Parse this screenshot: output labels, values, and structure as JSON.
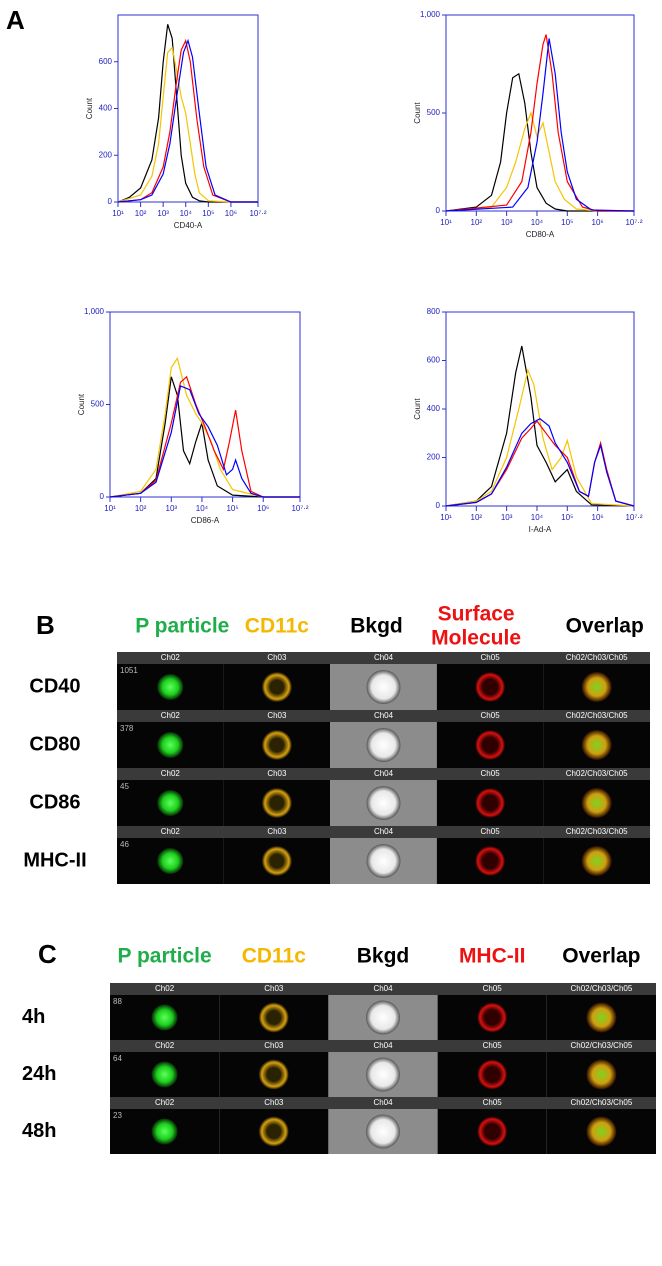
{
  "panel_a": {
    "label": "A",
    "plots": [
      {
        "type": "line",
        "xlabel": "CD40-A",
        "ylabel": "Count",
        "xlim": [
          1,
          7.2
        ],
        "xticks": [
          {
            "value": 1,
            "label": "10¹"
          },
          {
            "value": 2,
            "label": "10²"
          },
          {
            "value": 3,
            "label": "10³"
          },
          {
            "value": 4,
            "label": "10⁴"
          },
          {
            "value": 5,
            "label": "10⁵"
          },
          {
            "value": 6,
            "label": "10⁶"
          },
          {
            "value": 7.2,
            "label": "10⁷·²"
          }
        ],
        "ylim": [
          0,
          800
        ],
        "yticks": [
          0,
          200,
          400,
          600
        ],
        "series": [
          {
            "color": "#000000",
            "x": [
              1,
              1.5,
              2,
              2.5,
              2.8,
              3.0,
              3.2,
              3.4,
              3.6,
              3.8,
              4.0,
              4.3,
              4.6,
              5,
              6,
              7.2
            ],
            "values": [
              0,
              20,
              60,
              180,
              360,
              600,
              760,
              700,
              450,
              200,
              80,
              20,
              5,
              0,
              0,
              0
            ]
          },
          {
            "color": "#f5c400",
            "x": [
              1,
              2,
              2.5,
              2.8,
              3.0,
              3.2,
              3.4,
              3.6,
              3.8,
              4.0,
              4.2,
              4.4,
              4.6,
              5,
              6,
              7.2
            ],
            "values": [
              0,
              30,
              110,
              250,
              450,
              640,
              660,
              560,
              450,
              380,
              250,
              120,
              40,
              5,
              0,
              0
            ]
          },
          {
            "color": "#ff0000",
            "x": [
              1,
              2,
              2.5,
              3,
              3.3,
              3.6,
              3.8,
              4.0,
              4.2,
              4.5,
              4.8,
              5.2,
              6,
              7.2
            ],
            "values": [
              0,
              10,
              40,
              150,
              300,
              520,
              650,
              690,
              600,
              350,
              150,
              30,
              0,
              0
            ]
          },
          {
            "color": "#0000ff",
            "x": [
              1,
              2,
              2.5,
              3,
              3.3,
              3.6,
              3.9,
              4.1,
              4.3,
              4.6,
              4.9,
              5.3,
              6,
              7.2
            ],
            "values": [
              0,
              10,
              30,
              120,
              250,
              450,
              640,
              690,
              620,
              380,
              150,
              30,
              0,
              0
            ]
          }
        ]
      },
      {
        "type": "line",
        "xlabel": "CD80-A",
        "ylabel": "Count",
        "xlim": [
          1,
          7.2
        ],
        "xticks": [
          {
            "value": 1,
            "label": "10¹"
          },
          {
            "value": 2,
            "label": "10²"
          },
          {
            "value": 3,
            "label": "10³"
          },
          {
            "value": 4,
            "label": "10⁴"
          },
          {
            "value": 5,
            "label": "10⁵"
          },
          {
            "value": 6,
            "label": "10⁶"
          },
          {
            "value": 7.2,
            "label": "10⁷·²"
          }
        ],
        "ylim": [
          0,
          1000
        ],
        "yticks": [
          0,
          500,
          {
            "value": 1000,
            "label": "1,000"
          }
        ],
        "series": [
          {
            "color": "#000000",
            "x": [
              1,
              2,
              2.5,
              2.8,
              3.0,
              3.2,
              3.4,
              3.6,
              3.8,
              4.0,
              4.3,
              4.6,
              5,
              6,
              7.2
            ],
            "values": [
              0,
              20,
              80,
              250,
              500,
              680,
              700,
              550,
              300,
              120,
              40,
              10,
              0,
              0,
              0
            ]
          },
          {
            "color": "#f5c400",
            "x": [
              1,
              2.5,
              3,
              3.3,
              3.6,
              3.8,
              4.0,
              4.2,
              4.4,
              4.6,
              4.9,
              5.3,
              6,
              7.2
            ],
            "values": [
              0,
              20,
              120,
              250,
              420,
              500,
              380,
              450,
              300,
              150,
              60,
              10,
              0,
              0
            ]
          },
          {
            "color": "#ff0000",
            "x": [
              1,
              3,
              3.5,
              3.8,
              4.0,
              4.2,
              4.3,
              4.5,
              4.7,
              5.0,
              5.5,
              6,
              7.2
            ],
            "values": [
              0,
              30,
              150,
              400,
              650,
              850,
              900,
              700,
              400,
              150,
              20,
              0,
              0
            ]
          },
          {
            "color": "#0000ff",
            "x": [
              1,
              3.2,
              3.7,
              4.0,
              4.2,
              4.4,
              4.6,
              4.8,
              5.0,
              5.3,
              5.8,
              7.2
            ],
            "values": [
              0,
              20,
              120,
              350,
              600,
              880,
              700,
              400,
              200,
              60,
              5,
              0
            ]
          }
        ]
      },
      {
        "type": "line",
        "xlabel": "CD86-A",
        "ylabel": "Count",
        "xlim": [
          1,
          7.2
        ],
        "xticks": [
          {
            "value": 1,
            "label": "10¹"
          },
          {
            "value": 2,
            "label": "10²"
          },
          {
            "value": 3,
            "label": "10³"
          },
          {
            "value": 4,
            "label": "10⁴"
          },
          {
            "value": 5,
            "label": "10⁵"
          },
          {
            "value": 6,
            "label": "10⁶"
          },
          {
            "value": 7.2,
            "label": "10⁷·²"
          }
        ],
        "ylim": [
          0,
          1000
        ],
        "yticks": [
          0,
          500,
          {
            "value": 1000,
            "label": "1,000"
          }
        ],
        "series": [
          {
            "color": "#000000",
            "x": [
              1,
              2,
              2.5,
              2.8,
              3.0,
              3.2,
              3.4,
              3.6,
              3.8,
              4.0,
              4.2,
              4.5,
              5,
              6,
              7.2
            ],
            "values": [
              0,
              20,
              100,
              400,
              650,
              550,
              250,
              180,
              300,
              400,
              200,
              60,
              10,
              0,
              0
            ]
          },
          {
            "color": "#f5c400",
            "x": [
              1,
              2,
              2.5,
              2.8,
              3.0,
              3.2,
              3.5,
              3.8,
              4.0,
              4.3,
              4.6,
              5,
              6,
              7.2
            ],
            "values": [
              0,
              30,
              150,
              450,
              700,
              750,
              550,
              450,
              400,
              300,
              150,
              40,
              0,
              0
            ]
          },
          {
            "color": "#ff0000",
            "x": [
              1,
              2,
              2.5,
              3,
              3.3,
              3.5,
              3.8,
              4.1,
              4.4,
              4.7,
              4.9,
              5.1,
              5.3,
              5.6,
              6,
              7.2
            ],
            "values": [
              0,
              20,
              90,
              400,
              620,
              650,
              500,
              380,
              250,
              150,
              300,
              470,
              250,
              30,
              0,
              0
            ]
          },
          {
            "color": "#0000ff",
            "x": [
              1,
              2,
              2.5,
              3,
              3.3,
              3.6,
              3.9,
              4.2,
              4.5,
              4.8,
              5.0,
              5.1,
              5.3,
              5.6,
              6,
              7.2
            ],
            "values": [
              0,
              20,
              80,
              350,
              600,
              580,
              450,
              380,
              280,
              120,
              150,
              200,
              100,
              20,
              0,
              0
            ]
          }
        ]
      },
      {
        "type": "line",
        "xlabel": "I-Ad-A",
        "ylabel": "Count",
        "xlim": [
          1,
          7.2
        ],
        "xticks": [
          {
            "value": 1,
            "label": "10¹"
          },
          {
            "value": 2,
            "label": "10²"
          },
          {
            "value": 3,
            "label": "10³"
          },
          {
            "value": 4,
            "label": "10⁴"
          },
          {
            "value": 5,
            "label": "10⁵"
          },
          {
            "value": 6,
            "label": "10⁶"
          },
          {
            "value": 7.2,
            "label": "10⁷·²"
          }
        ],
        "ylim": [
          0,
          800
        ],
        "yticks": [
          0,
          200,
          400,
          600,
          800
        ],
        "series": [
          {
            "color": "#000000",
            "x": [
              1,
              2,
              2.5,
              3,
              3.3,
              3.5,
              3.8,
              4.0,
              4.3,
              4.6,
              5.0,
              5.3,
              5.8,
              7.2
            ],
            "values": [
              0,
              20,
              80,
              300,
              550,
              660,
              450,
              250,
              180,
              100,
              150,
              60,
              5,
              0
            ]
          },
          {
            "color": "#f5c400",
            "x": [
              1,
              2,
              2.5,
              3,
              3.4,
              3.7,
              3.9,
              4.2,
              4.5,
              4.8,
              5.0,
              5.3,
              5.8,
              7.2
            ],
            "values": [
              0,
              20,
              60,
              200,
              400,
              560,
              500,
              280,
              150,
              200,
              270,
              120,
              10,
              0
            ]
          },
          {
            "color": "#ff0000",
            "x": [
              1,
              2,
              2.5,
              3,
              3.5,
              3.8,
              4.0,
              4.3,
              4.6,
              5.0,
              5.4,
              5.7,
              5.9,
              6.1,
              6.3,
              6.6,
              7.2
            ],
            "values": [
              0,
              15,
              50,
              150,
              280,
              320,
              350,
              300,
              250,
              200,
              60,
              40,
              180,
              260,
              150,
              20,
              0
            ]
          },
          {
            "color": "#0000ff",
            "x": [
              1,
              2,
              2.5,
              3,
              3.5,
              3.8,
              4.1,
              4.4,
              4.6,
              5.0,
              5.4,
              5.7,
              5.9,
              6.1,
              6.3,
              6.6,
              7.2
            ],
            "values": [
              0,
              15,
              50,
              160,
              300,
              340,
              360,
              330,
              260,
              180,
              60,
              40,
              180,
              250,
              140,
              20,
              0
            ]
          }
        ]
      }
    ]
  },
  "panel_b": {
    "label": "B",
    "columns": [
      {
        "lines": [
          "P particle"
        ],
        "color": "#1fae4a"
      },
      {
        "lines": [
          "CD11c"
        ],
        "color": "#f5b800"
      },
      {
        "lines": [
          "Bkgd"
        ],
        "color": "#000000"
      },
      {
        "lines": [
          "Surface",
          "Molecule"
        ],
        "color": "#ee1111"
      },
      {
        "lines": [
          "Overlap"
        ],
        "color": "#000000"
      }
    ],
    "channels": [
      "Ch02",
      "Ch03",
      "Ch04",
      "Ch05",
      "Ch02/Ch03/Ch05"
    ],
    "rows": [
      {
        "label": "CD40",
        "object_id": "1051"
      },
      {
        "label": "CD80",
        "object_id": "378"
      },
      {
        "label": "CD86",
        "object_id": "45"
      },
      {
        "label": "MHC-II",
        "object_id": "46"
      }
    ]
  },
  "panel_c": {
    "label": "C",
    "columns": [
      {
        "lines": [
          "P particle"
        ],
        "color": "#1fae4a"
      },
      {
        "lines": [
          "CD11c"
        ],
        "color": "#f5b800"
      },
      {
        "lines": [
          "Bkgd"
        ],
        "color": "#000000"
      },
      {
        "lines": [
          "MHC-II"
        ],
        "color": "#ee1111"
      },
      {
        "lines": [
          "Overlap"
        ],
        "color": "#000000"
      }
    ],
    "channels": [
      "Ch02",
      "Ch03",
      "Ch04",
      "Ch05",
      "Ch02/Ch03/Ch05"
    ],
    "rows": [
      {
        "label": "4h",
        "object_id": "88"
      },
      {
        "label": "24h",
        "object_id": "64"
      },
      {
        "label": "48h",
        "object_id": "23"
      }
    ]
  }
}
